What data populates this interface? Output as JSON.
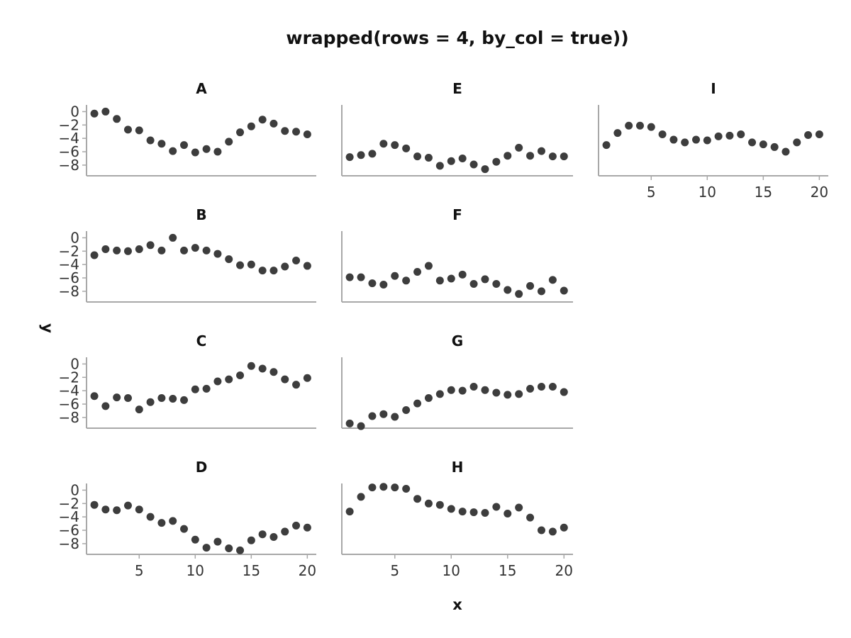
{
  "chart_data": {
    "type": "scatter",
    "title": "wrapped(rows = 4, by_col = true))",
    "xlabel": "x",
    "ylabel": "y",
    "xlim": [
      0.3,
      20.8
    ],
    "ylim": [
      -9.6,
      1.0
    ],
    "xticks": [
      5,
      10,
      15,
      20
    ],
    "yticks": [
      0,
      -2,
      -4,
      -6,
      -8
    ],
    "ytick_labels": [
      "0",
      "−2",
      "−4",
      "−6",
      "−8"
    ],
    "x": [
      1,
      2,
      3,
      4,
      5,
      6,
      7,
      8,
      9,
      10,
      11,
      12,
      13,
      14,
      15,
      16,
      17,
      18,
      19,
      20
    ],
    "point_color": "#3d3d3d",
    "axis_color": "#a8a8a8",
    "panels": [
      {
        "name": "A",
        "values": [
          -0.3,
          0.0,
          -1.1,
          -2.7,
          -2.8,
          -4.3,
          -4.8,
          -5.9,
          -5.0,
          -6.1,
          -5.6,
          -6.0,
          -4.5,
          -3.1,
          -2.2,
          -1.2,
          -1.8,
          -2.9,
          -3.0,
          -3.4
        ]
      },
      {
        "name": "B",
        "values": [
          -2.6,
          -1.7,
          -1.9,
          -2.0,
          -1.7,
          -1.1,
          -1.9,
          0.0,
          -1.9,
          -1.5,
          -1.9,
          -2.4,
          -3.2,
          -4.1,
          -4.0,
          -4.9,
          -4.9,
          -4.3,
          -3.4,
          -4.2
        ]
      },
      {
        "name": "C",
        "values": [
          -4.8,
          -6.3,
          -5.0,
          -5.1,
          -6.8,
          -5.7,
          -5.1,
          -5.2,
          -5.4,
          -3.8,
          -3.7,
          -2.6,
          -2.3,
          -1.7,
          -0.3,
          -0.7,
          -1.2,
          -2.3,
          -3.1,
          -2.1
        ]
      },
      {
        "name": "D",
        "values": [
          -2.2,
          -2.9,
          -3.0,
          -2.3,
          -2.9,
          -4.0,
          -4.9,
          -4.6,
          -5.8,
          -7.4,
          -8.6,
          -7.7,
          -8.7,
          -9.0,
          -7.5,
          -6.6,
          -7.0,
          -6.2,
          -5.3,
          -5.6
        ]
      },
      {
        "name": "E",
        "values": [
          -6.8,
          -6.5,
          -6.3,
          -4.8,
          -5.0,
          -5.5,
          -6.7,
          -6.9,
          -8.1,
          -7.4,
          -7.0,
          -7.9,
          -8.6,
          -7.5,
          -6.6,
          -5.4,
          -6.6,
          -5.9,
          -6.7,
          -6.7
        ]
      },
      {
        "name": "F",
        "values": [
          -5.9,
          -5.9,
          -6.8,
          -7.0,
          -5.7,
          -6.4,
          -5.1,
          -4.2,
          -6.4,
          -6.1,
          -5.5,
          -6.9,
          -6.2,
          -6.9,
          -7.8,
          -8.4,
          -7.2,
          -8.0,
          -6.3,
          -7.9
        ]
      },
      {
        "name": "G",
        "values": [
          -8.9,
          -9.3,
          -7.8,
          -7.5,
          -7.9,
          -6.9,
          -5.9,
          -5.1,
          -4.5,
          -3.9,
          -4.0,
          -3.4,
          -3.9,
          -4.3,
          -4.6,
          -4.5,
          -3.7,
          -3.4,
          -3.4,
          -4.2
        ]
      },
      {
        "name": "H",
        "values": [
          -3.2,
          -1.0,
          0.4,
          0.5,
          0.4,
          0.2,
          -1.3,
          -2.0,
          -2.2,
          -2.8,
          -3.2,
          -3.3,
          -3.4,
          -2.5,
          -3.5,
          -2.6,
          -4.1,
          -6.0,
          -6.2,
          -5.6
        ]
      },
      {
        "name": "I",
        "values": [
          -5.0,
          -3.2,
          -2.1,
          -2.1,
          -2.3,
          -3.4,
          -4.2,
          -4.6,
          -4.2,
          -4.3,
          -3.7,
          -3.6,
          -3.4,
          -4.6,
          -4.9,
          -5.3,
          -6.0,
          -4.6,
          -3.5,
          -3.4
        ]
      }
    ]
  }
}
